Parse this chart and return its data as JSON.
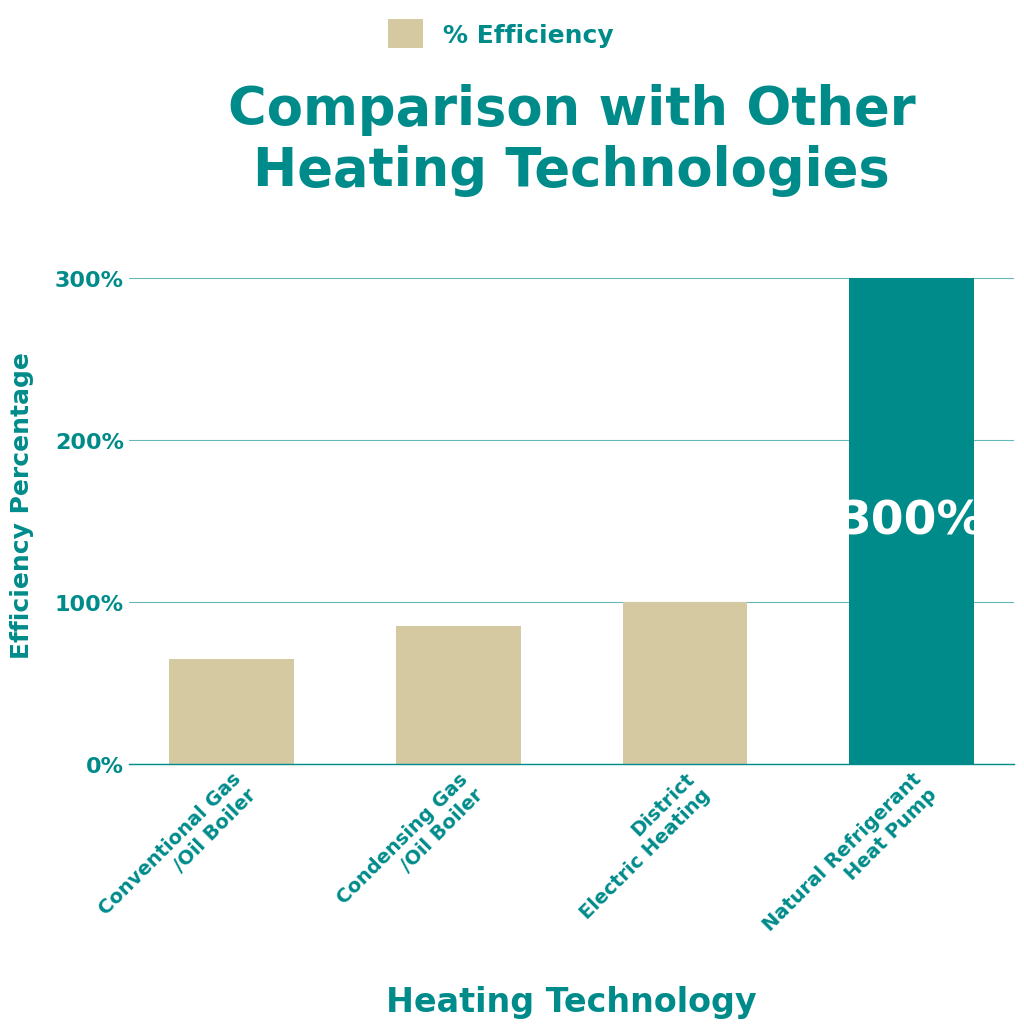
{
  "title": "Comparison with Other\nHeating Technologies",
  "title_color": "#008B8B",
  "title_fontsize": 38,
  "xlabel": "Heating Technology",
  "ylabel": "Efficiency Percentage",
  "xlabel_color": "#008B8B",
  "ylabel_color": "#008B8B",
  "xlabel_fontsize": 24,
  "ylabel_fontsize": 18,
  "categories": [
    "Conventional Gas\n/Oil Boiler",
    "Condensing Gas\n/Oil Boiler",
    "District\nElectric Heating",
    "Natural Refrigerant\nHeat Pump"
  ],
  "values": [
    65,
    85,
    100,
    300
  ],
  "bar_colors": [
    "#d4c9a0",
    "#d4c9a0",
    "#d4c9a0",
    "#008B8B"
  ],
  "ylim": [
    0,
    320
  ],
  "yticks": [
    0,
    100,
    200,
    300
  ],
  "yticklabels": [
    "0%",
    "100%",
    "200%",
    "300%"
  ],
  "ytick_color": "#008B8B",
  "xtick_color": "#008B8B",
  "grid_color": "#008B8B",
  "legend_label": "% Efficiency",
  "legend_color": "#d4c9a0",
  "bar_label": "300%",
  "bar_label_color": "#ffffff",
  "bar_label_fontsize": 34,
  "background_color": "#ffffff",
  "bar_width": 0.55
}
